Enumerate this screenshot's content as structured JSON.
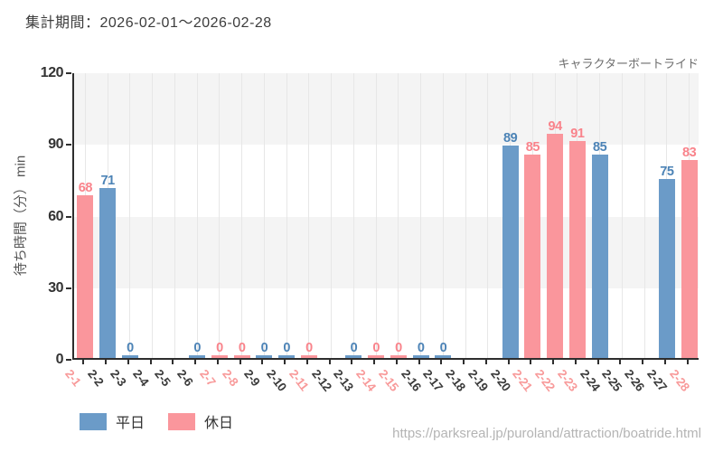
{
  "header": {
    "title": "集計期間：2026-02-01～2026-02-28"
  },
  "chart_data": {
    "type": "bar",
    "title": "キャラクターボートライド",
    "ylabel": "待ち時間（分） min",
    "ylim": [
      0,
      120
    ],
    "yticks": [
      0,
      30,
      60,
      90,
      120
    ],
    "grid": true,
    "band_color": "#f4f4f4",
    "legend_position": "bottom-left",
    "legend": [
      {
        "key": "weekday",
        "label": "平日",
        "color": "#6b9bc8",
        "text_color": "#4c83b6",
        "tick_color": "#3b3b3b"
      },
      {
        "key": "holiday",
        "label": "休日",
        "color": "#fa969c",
        "text_color": "#f9838b",
        "tick_color": "#f89a9a"
      }
    ],
    "categories": [
      "2-1",
      "2-2",
      "2-3",
      "2-4",
      "2-5",
      "2-6",
      "2-7",
      "2-8",
      "2-9",
      "2-10",
      "2-11",
      "2-12",
      "2-13",
      "2-14",
      "2-15",
      "2-16",
      "2-17",
      "2-18",
      "2-19",
      "2-20",
      "2-21",
      "2-22",
      "2-23",
      "2-24",
      "2-25",
      "2-26",
      "2-27",
      "2-28"
    ],
    "days": [
      {
        "date": "2-1",
        "type": "holiday",
        "value": 68
      },
      {
        "date": "2-2",
        "type": "weekday",
        "value": 71
      },
      {
        "date": "2-3",
        "type": "weekday",
        "value": 0
      },
      {
        "date": "2-4",
        "type": "weekday",
        "value": null
      },
      {
        "date": "2-5",
        "type": "weekday",
        "value": null
      },
      {
        "date": "2-6",
        "type": "weekday",
        "value": 0
      },
      {
        "date": "2-7",
        "type": "holiday",
        "value": 0
      },
      {
        "date": "2-8",
        "type": "holiday",
        "value": 0
      },
      {
        "date": "2-9",
        "type": "weekday",
        "value": 0
      },
      {
        "date": "2-10",
        "type": "weekday",
        "value": 0
      },
      {
        "date": "2-11",
        "type": "holiday",
        "value": 0
      },
      {
        "date": "2-12",
        "type": "weekday",
        "value": null
      },
      {
        "date": "2-13",
        "type": "weekday",
        "value": 0
      },
      {
        "date": "2-14",
        "type": "holiday",
        "value": 0
      },
      {
        "date": "2-15",
        "type": "holiday",
        "value": 0
      },
      {
        "date": "2-16",
        "type": "weekday",
        "value": 0
      },
      {
        "date": "2-17",
        "type": "weekday",
        "value": 0
      },
      {
        "date": "2-18",
        "type": "weekday",
        "value": null
      },
      {
        "date": "2-19",
        "type": "weekday",
        "value": null
      },
      {
        "date": "2-20",
        "type": "weekday",
        "value": 89
      },
      {
        "date": "2-21",
        "type": "holiday",
        "value": 85
      },
      {
        "date": "2-22",
        "type": "holiday",
        "value": 94
      },
      {
        "date": "2-23",
        "type": "holiday",
        "value": 91
      },
      {
        "date": "2-24",
        "type": "weekday",
        "value": 85
      },
      {
        "date": "2-25",
        "type": "weekday",
        "value": null
      },
      {
        "date": "2-26",
        "type": "weekday",
        "value": null
      },
      {
        "date": "2-27",
        "type": "weekday",
        "value": 75
      },
      {
        "date": "2-28",
        "type": "holiday",
        "value": 83
      }
    ]
  },
  "footer": {
    "url": "https://parksreal.jp/puroland/attraction/boatride.html"
  }
}
